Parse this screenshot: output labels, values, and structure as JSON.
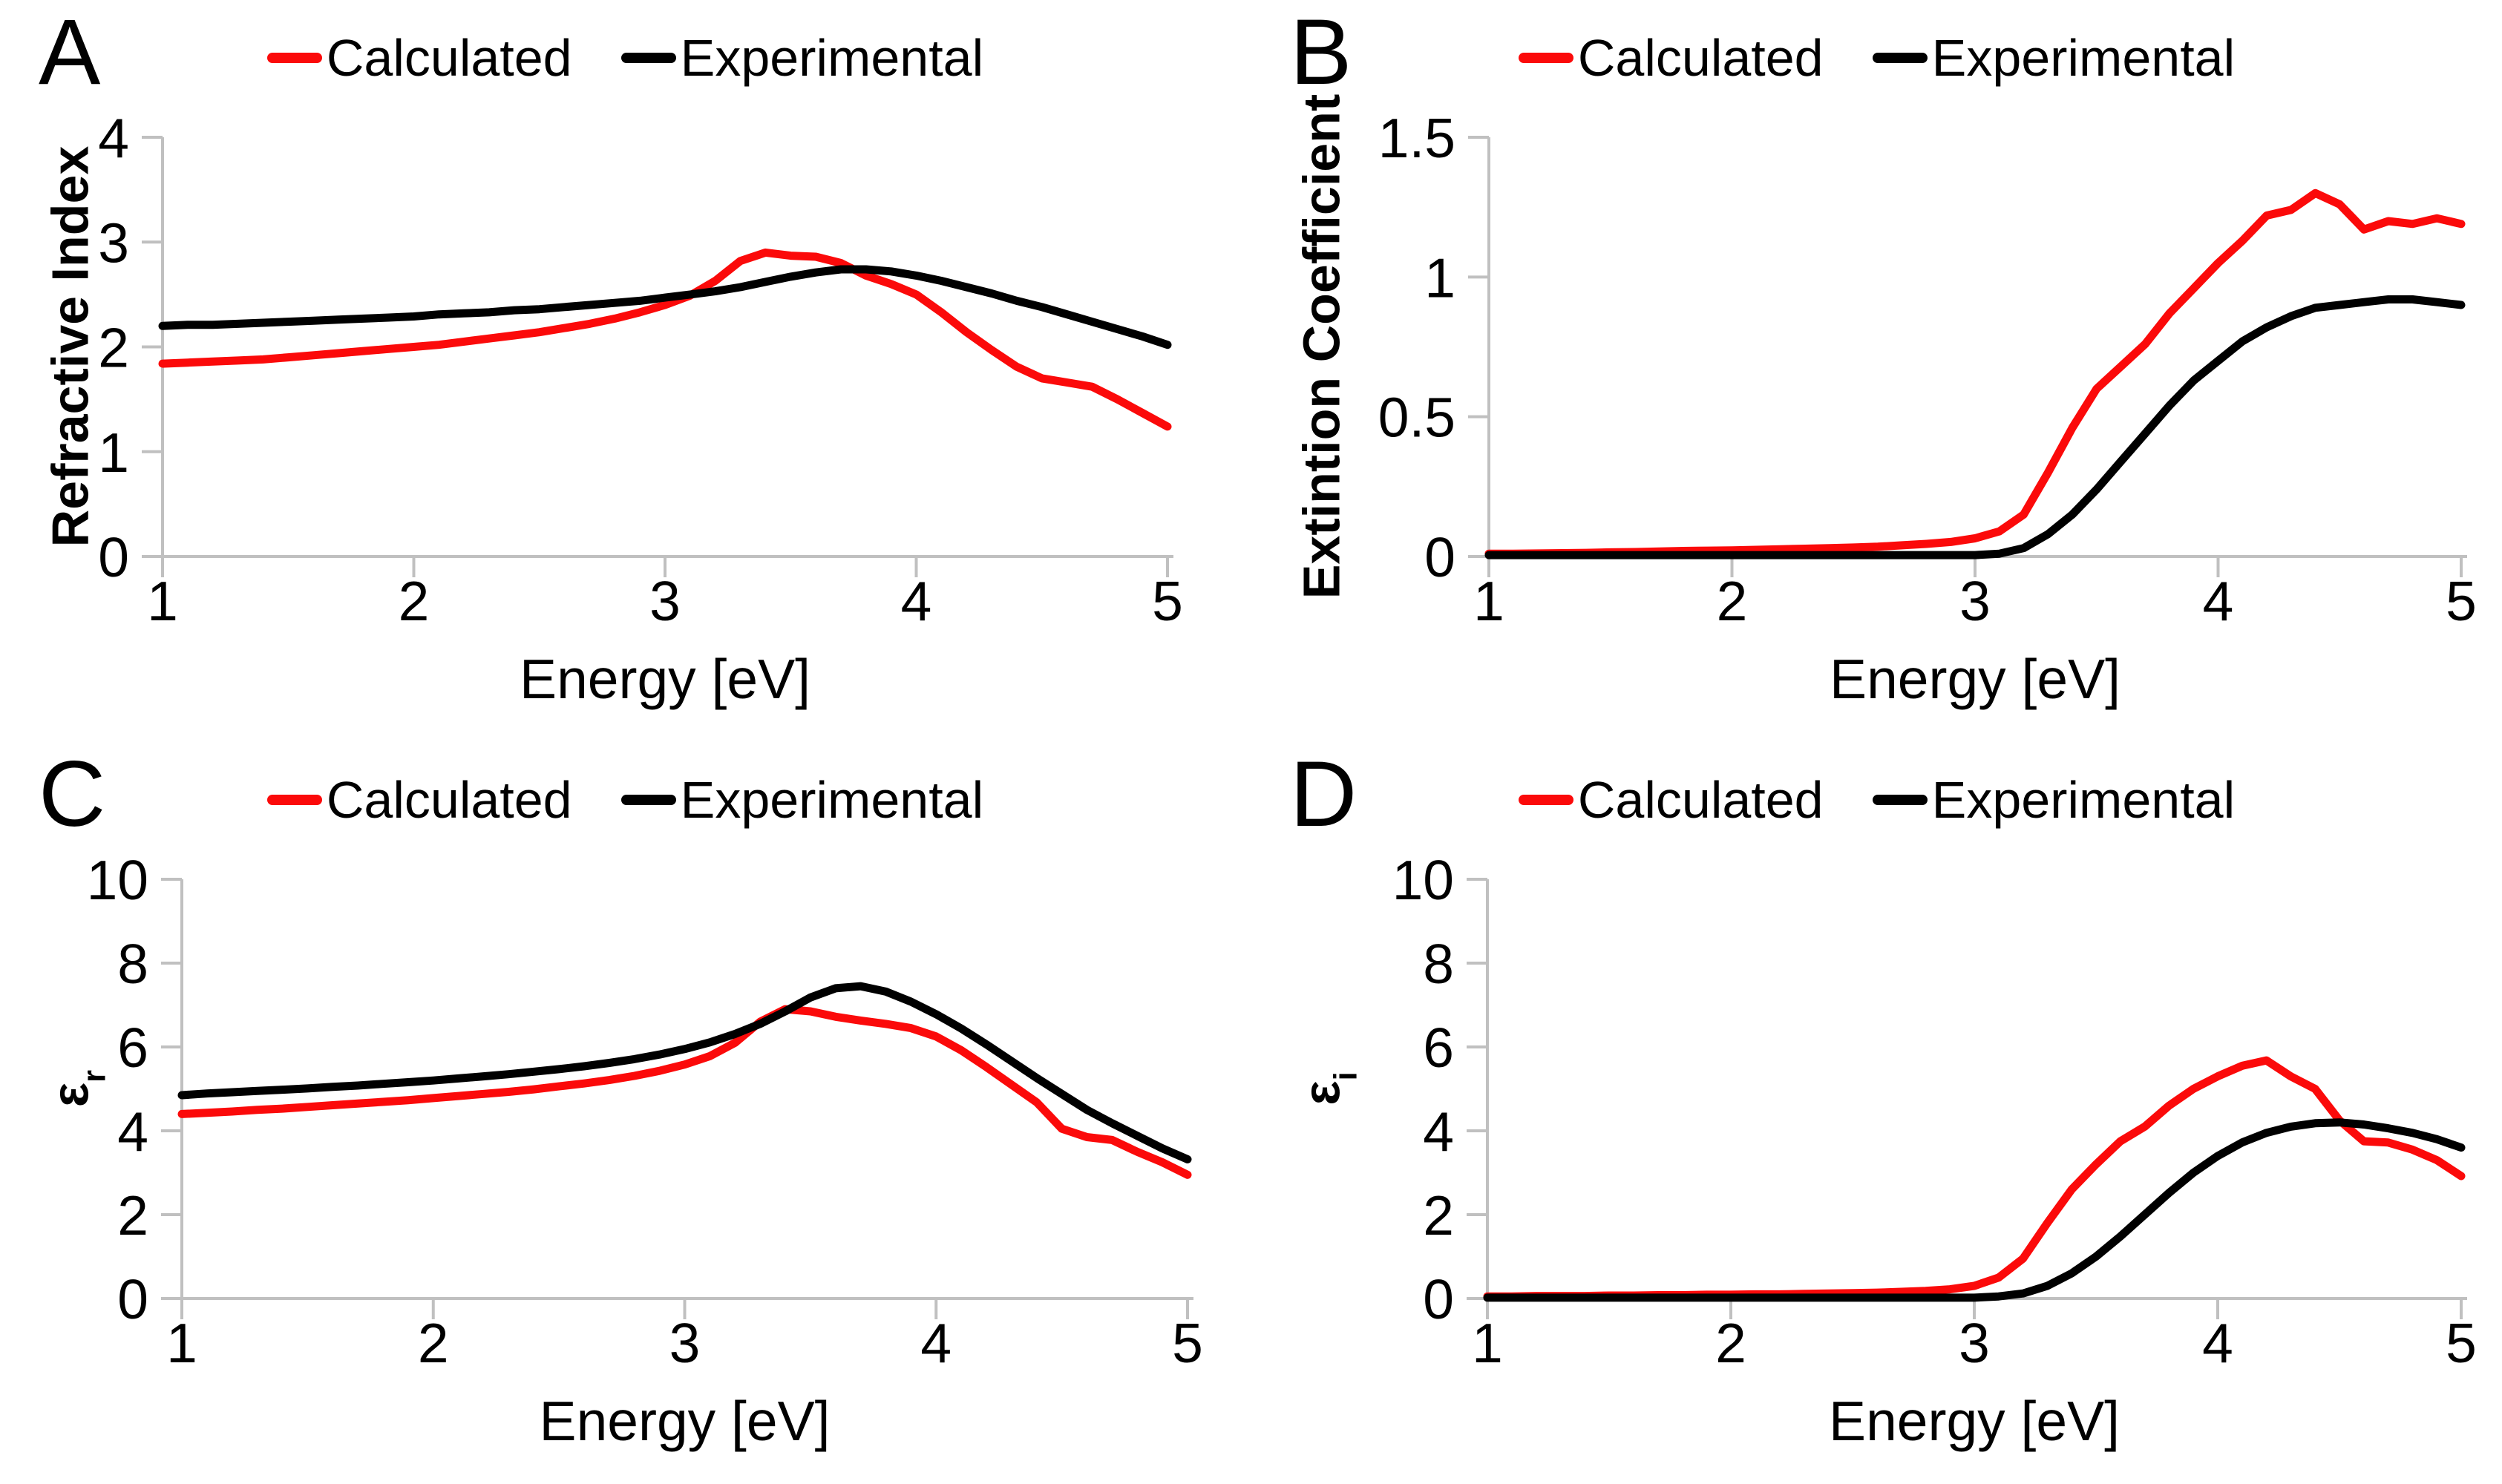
{
  "legend": {
    "calculated": "Calculated",
    "experimental": "Experimental"
  },
  "colors": {
    "calculated": "#fb0a0a",
    "experimental": "#000000",
    "axis": "#c0c0c0",
    "text": "#000000",
    "background": "#ffffff"
  },
  "xlabel": "Energy [eV]",
  "chart_data": {
    "type": "line",
    "x": [
      1.0,
      1.1,
      1.2,
      1.3,
      1.4,
      1.5,
      1.6,
      1.7,
      1.8,
      1.9,
      2.0,
      2.1,
      2.2,
      2.3,
      2.4,
      2.5,
      2.6,
      2.7,
      2.8,
      2.9,
      3.0,
      3.1,
      3.2,
      3.3,
      3.4,
      3.5,
      3.6,
      3.7,
      3.8,
      3.9,
      4.0,
      4.1,
      4.2,
      4.3,
      4.4,
      4.5,
      4.6,
      4.7,
      4.8,
      4.9,
      5.0
    ],
    "xlim": [
      1,
      5
    ],
    "xticks": [
      "1",
      "2",
      "3",
      "4",
      "5"
    ],
    "grid": false,
    "legend_position": "top-center",
    "panels": [
      {
        "letter": "A",
        "ylabel": "Refractive Index",
        "ylabel_sub": "",
        "ylim": [
          0,
          4
        ],
        "yticks": [
          "0",
          "1",
          "2",
          "3",
          "4"
        ],
        "series": [
          {
            "name": "Calculated",
            "color": "#fb0a0a",
            "values": [
              1.84,
              1.85,
              1.86,
              1.87,
              1.88,
              1.9,
              1.92,
              1.94,
              1.96,
              1.98,
              2.0,
              2.02,
              2.05,
              2.08,
              2.11,
              2.14,
              2.18,
              2.22,
              2.27,
              2.33,
              2.4,
              2.49,
              2.63,
              2.82,
              2.9,
              2.87,
              2.86,
              2.8,
              2.68,
              2.6,
              2.5,
              2.33,
              2.14,
              1.97,
              1.81,
              1.7,
              1.66,
              1.62,
              1.5,
              1.37,
              1.24
            ]
          },
          {
            "name": "Experimental",
            "color": "#000000",
            "values": [
              2.2,
              2.21,
              2.21,
              2.22,
              2.23,
              2.24,
              2.25,
              2.26,
              2.27,
              2.28,
              2.29,
              2.31,
              2.32,
              2.33,
              2.35,
              2.36,
              2.38,
              2.4,
              2.42,
              2.44,
              2.47,
              2.5,
              2.53,
              2.57,
              2.62,
              2.67,
              2.71,
              2.74,
              2.74,
              2.72,
              2.68,
              2.63,
              2.57,
              2.51,
              2.44,
              2.38,
              2.31,
              2.24,
              2.17,
              2.1,
              2.02
            ]
          }
        ]
      },
      {
        "letter": "B",
        "ylabel": "Extintion Coefficient",
        "ylabel_sub": "",
        "ylim": [
          0,
          1.5
        ],
        "yticks": [
          "0",
          "0.5",
          "1",
          "1.5"
        ],
        "series": [
          {
            "name": "Calculated",
            "color": "#fb0a0a",
            "values": [
              0.01,
              0.01,
              0.011,
              0.012,
              0.013,
              0.015,
              0.016,
              0.018,
              0.02,
              0.021,
              0.022,
              0.024,
              0.026,
              0.028,
              0.03,
              0.032,
              0.035,
              0.04,
              0.045,
              0.052,
              0.065,
              0.09,
              0.15,
              0.3,
              0.46,
              0.6,
              0.68,
              0.76,
              0.87,
              0.96,
              1.05,
              1.13,
              1.22,
              1.24,
              1.3,
              1.26,
              1.17,
              1.2,
              1.19,
              1.21,
              1.19
            ]
          },
          {
            "name": "Experimental",
            "color": "#000000",
            "values": [
              0.005,
              0.005,
              0.005,
              0.005,
              0.005,
              0.005,
              0.005,
              0.005,
              0.005,
              0.005,
              0.005,
              0.005,
              0.005,
              0.005,
              0.005,
              0.005,
              0.005,
              0.005,
              0.005,
              0.005,
              0.005,
              0.01,
              0.03,
              0.08,
              0.15,
              0.24,
              0.34,
              0.44,
              0.54,
              0.63,
              0.7,
              0.77,
              0.82,
              0.86,
              0.89,
              0.9,
              0.91,
              0.92,
              0.92,
              0.91,
              0.9
            ]
          }
        ]
      },
      {
        "letter": "C",
        "ylabel": "ε",
        "ylabel_sub": "r",
        "ylim": [
          0,
          10
        ],
        "yticks": [
          "0",
          "2",
          "4",
          "6",
          "8",
          "10"
        ],
        "series": [
          {
            "name": "Calculated",
            "color": "#fb0a0a",
            "values": [
              4.4,
              4.43,
              4.46,
              4.5,
              4.53,
              4.57,
              4.61,
              4.65,
              4.69,
              4.73,
              4.78,
              4.83,
              4.88,
              4.93,
              4.99,
              5.06,
              5.13,
              5.21,
              5.31,
              5.43,
              5.58,
              5.78,
              6.1,
              6.6,
              6.9,
              6.85,
              6.72,
              6.63,
              6.55,
              6.45,
              6.25,
              5.92,
              5.52,
              5.1,
              4.68,
              4.05,
              3.85,
              3.78,
              3.5,
              3.25,
              2.95
            ]
          },
          {
            "name": "Experimental",
            "color": "#000000",
            "values": [
              4.85,
              4.89,
              4.92,
              4.95,
              4.98,
              5.01,
              5.05,
              5.08,
              5.12,
              5.16,
              5.2,
              5.25,
              5.3,
              5.35,
              5.41,
              5.47,
              5.54,
              5.62,
              5.71,
              5.82,
              5.95,
              6.11,
              6.31,
              6.55,
              6.85,
              7.18,
              7.4,
              7.45,
              7.32,
              7.08,
              6.78,
              6.44,
              6.06,
              5.66,
              5.26,
              4.88,
              4.5,
              4.18,
              3.88,
              3.58,
              3.32
            ]
          }
        ]
      },
      {
        "letter": "D",
        "ylabel": "ε",
        "ylabel_sub": "i",
        "ylim": [
          0,
          10
        ],
        "yticks": [
          "0",
          "2",
          "4",
          "6",
          "8",
          "10"
        ],
        "series": [
          {
            "name": "Calculated",
            "color": "#fb0a0a",
            "values": [
              0.05,
              0.05,
              0.06,
              0.06,
              0.06,
              0.07,
              0.07,
              0.08,
              0.08,
              0.09,
              0.09,
              0.1,
              0.1,
              0.11,
              0.12,
              0.13,
              0.14,
              0.16,
              0.18,
              0.22,
              0.3,
              0.5,
              0.95,
              1.8,
              2.6,
              3.2,
              3.75,
              4.1,
              4.6,
              5.0,
              5.3,
              5.55,
              5.68,
              5.3,
              5.0,
              4.25,
              3.75,
              3.72,
              3.55,
              3.3,
              2.92
            ]
          },
          {
            "name": "Experimental",
            "color": "#000000",
            "values": [
              0.02,
              0.02,
              0.02,
              0.02,
              0.02,
              0.02,
              0.02,
              0.02,
              0.02,
              0.02,
              0.02,
              0.02,
              0.02,
              0.02,
              0.02,
              0.02,
              0.02,
              0.02,
              0.02,
              0.02,
              0.02,
              0.05,
              0.12,
              0.3,
              0.6,
              1.0,
              1.48,
              2.0,
              2.52,
              3.0,
              3.4,
              3.72,
              3.95,
              4.1,
              4.18,
              4.2,
              4.15,
              4.06,
              3.95,
              3.8,
              3.6
            ]
          }
        ]
      }
    ]
  }
}
